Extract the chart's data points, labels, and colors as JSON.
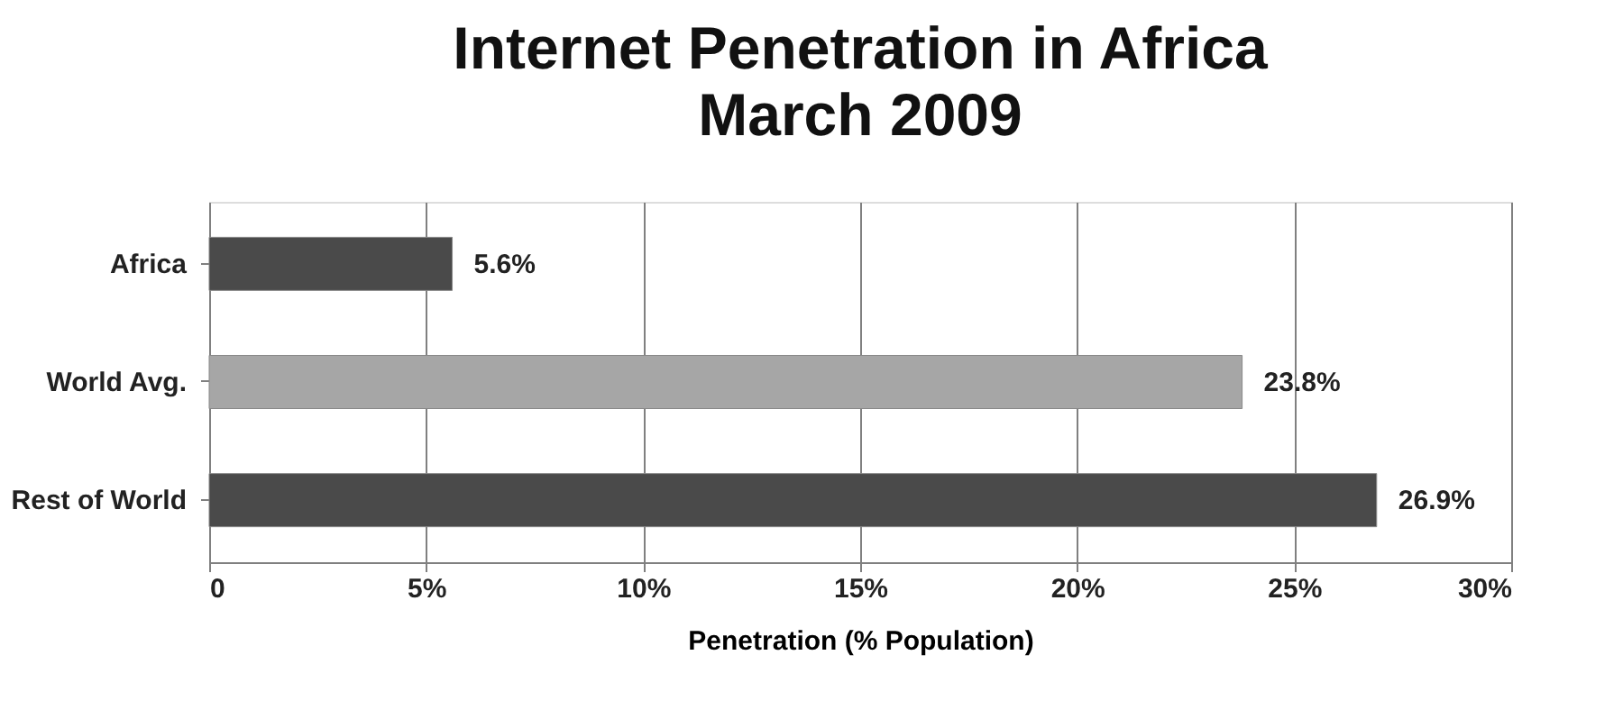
{
  "chart_data": {
    "type": "bar",
    "orientation": "horizontal",
    "title": "Internet Penetration in Africa",
    "subtitle": "March 2009",
    "xlabel": "Penetration (% Population)",
    "categories": [
      "Africa",
      "World Avg.",
      "Rest of World"
    ],
    "values": [
      5.6,
      23.8,
      26.9
    ],
    "colors": [
      "#4a4a4a",
      "#a6a6a6",
      "#4a4a4a"
    ],
    "value_labels": [
      "5.6%",
      "23.8%",
      "26.9%"
    ],
    "xlim": [
      0,
      30
    ],
    "xticks": [
      0,
      {
        "value": 5,
        "label": "5%"
      },
      {
        "value": 10,
        "label": "10%"
      },
      {
        "value": 15,
        "label": "15%"
      },
      {
        "value": 20,
        "label": "20%"
      },
      {
        "value": 25,
        "label": "25%"
      },
      {
        "value": 30,
        "label": "30%"
      }
    ],
    "grid": "x",
    "legend": false
  }
}
